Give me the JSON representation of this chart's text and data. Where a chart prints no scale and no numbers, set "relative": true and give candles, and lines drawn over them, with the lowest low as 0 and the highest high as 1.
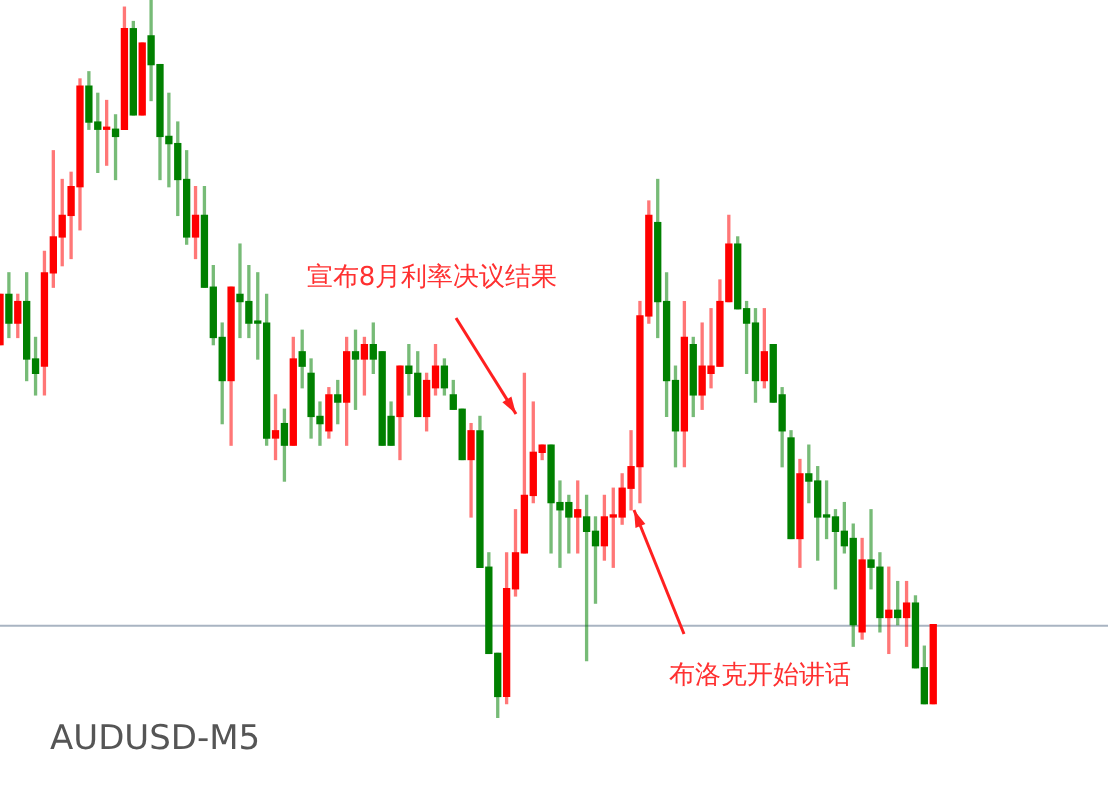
{
  "chart_data": {
    "type": "candlestick",
    "title": "AUDUSD-M5",
    "relative": true,
    "annotations": [
      "宣布8月利率决议结果",
      "布洛克开始讲话"
    ],
    "ref_lines": [
      {
        "axis": "y",
        "value": 0.13,
        "color": "#a9b4c2"
      }
    ],
    "categories": [
      null,
      null,
      null,
      null,
      null,
      null,
      null,
      null,
      null,
      null,
      null,
      null,
      null,
      null,
      null,
      null,
      null,
      null,
      null,
      null,
      null,
      null,
      null,
      null,
      null,
      null,
      null,
      null,
      null,
      null,
      null,
      null,
      null,
      null,
      null,
      null,
      null,
      null,
      null,
      null,
      null,
      null,
      null,
      null,
      null,
      null,
      null,
      null,
      null,
      null,
      null,
      null,
      null,
      null,
      null,
      null,
      null,
      null,
      null,
      null,
      null,
      null,
      null,
      null,
      null,
      null,
      null,
      null,
      null,
      null,
      null,
      null,
      null,
      null,
      null,
      null,
      null,
      null,
      null,
      null,
      null,
      null,
      null,
      null,
      null,
      null,
      null,
      null,
      null,
      null,
      null,
      null,
      null,
      null,
      null,
      null,
      null,
      null,
      null,
      null,
      null,
      null,
      null,
      null,
      null,
      null
    ],
    "ohlc": [
      [
        0.52,
        0.59,
        0.52,
        0.59
      ],
      [
        0.59,
        0.62,
        0.53,
        0.55
      ],
      [
        0.55,
        0.59,
        0.53,
        0.58
      ],
      [
        0.58,
        0.62,
        0.47,
        0.5
      ],
      [
        0.5,
        0.53,
        0.45,
        0.48
      ],
      [
        0.49,
        0.65,
        0.45,
        0.62
      ],
      [
        0.62,
        0.79,
        0.6,
        0.67
      ],
      [
        0.67,
        0.75,
        0.63,
        0.7
      ],
      [
        0.7,
        0.76,
        0.64,
        0.74
      ],
      [
        0.74,
        0.89,
        0.68,
        0.88
      ],
      [
        0.88,
        0.9,
        0.82,
        0.83
      ],
      [
        0.83,
        0.87,
        0.76,
        0.82
      ],
      [
        0.82,
        0.86,
        0.77,
        0.82
      ],
      [
        0.82,
        0.84,
        0.75,
        0.81
      ],
      [
        0.82,
        0.99,
        0.82,
        0.96
      ],
      [
        0.96,
        0.97,
        0.84,
        0.84
      ],
      [
        0.84,
        0.94,
        0.84,
        0.94
      ],
      [
        0.95,
        1,
        0.86,
        0.91
      ],
      [
        0.91,
        0.91,
        0.75,
        0.81
      ],
      [
        0.81,
        0.87,
        0.74,
        0.8
      ],
      [
        0.8,
        0.83,
        0.7,
        0.75
      ],
      [
        0.75,
        0.79,
        0.66,
        0.67
      ],
      [
        0.67,
        0.74,
        0.64,
        0.7
      ],
      [
        0.7,
        0.74,
        0.6,
        0.6
      ],
      [
        0.6,
        0.63,
        0.52,
        0.53
      ],
      [
        0.53,
        0.55,
        0.41,
        0.47
      ],
      [
        0.47,
        0.6,
        0.38,
        0.6
      ],
      [
        0.59,
        0.66,
        0.53,
        0.58
      ],
      [
        0.58,
        0.63,
        0.53,
        0.55
      ],
      [
        0.55,
        0.62,
        0.5,
        0.55
      ],
      [
        0.55,
        0.59,
        0.38,
        0.39
      ],
      [
        0.39,
        0.45,
        0.36,
        0.4
      ],
      [
        0.41,
        0.43,
        0.33,
        0.38
      ],
      [
        0.38,
        0.53,
        0.38,
        0.5
      ],
      [
        0.51,
        0.54,
        0.46,
        0.49
      ],
      [
        0.48,
        0.5,
        0.39,
        0.42
      ],
      [
        0.42,
        0.44,
        0.38,
        0.41
      ],
      [
        0.4,
        0.46,
        0.39,
        0.45
      ],
      [
        0.45,
        0.47,
        0.41,
        0.44
      ],
      [
        0.44,
        0.53,
        0.38,
        0.51
      ],
      [
        0.51,
        0.54,
        0.43,
        0.5
      ],
      [
        0.5,
        0.53,
        0.45,
        0.52
      ],
      [
        0.52,
        0.55,
        0.48,
        0.5
      ],
      [
        0.51,
        0.51,
        0.38,
        0.38
      ],
      [
        0.42,
        0.44,
        0.38,
        0.38
      ],
      [
        0.42,
        0.49,
        0.36,
        0.49
      ],
      [
        0.49,
        0.52,
        0.45,
        0.48
      ],
      [
        0.48,
        0.51,
        0.42,
        0.42
      ],
      [
        0.42,
        0.48,
        0.4,
        0.47
      ],
      [
        0.46,
        0.52,
        0.45,
        0.49
      ],
      [
        0.49,
        0.5,
        0.45,
        0.46
      ],
      [
        0.45,
        0.47,
        0.43,
        0.43
      ],
      [
        0.43,
        0.43,
        0.36,
        0.36
      ],
      [
        0.36,
        0.41,
        0.28,
        0.4
      ],
      [
        0.4,
        0.42,
        0.21,
        0.21
      ],
      [
        0.21,
        0.23,
        0.09,
        0.09
      ],
      [
        0.09,
        0.09,
        0,
        0.03
      ],
      [
        0.03,
        0.23,
        0.02,
        0.18
      ],
      [
        0.18,
        0.29,
        0.17,
        0.23
      ],
      [
        0.23,
        0.48,
        0.23,
        0.31
      ],
      [
        0.31,
        0.44,
        0.3,
        0.37
      ],
      [
        0.37,
        0.38,
        0.36,
        0.38
      ],
      [
        0.38,
        0.38,
        0.23,
        0.3
      ],
      [
        0.3,
        0.33,
        0.21,
        0.29
      ],
      [
        0.3,
        0.31,
        0.23,
        0.28
      ],
      [
        0.28,
        0.33,
        0.23,
        0.29
      ],
      [
        0.28,
        0.31,
        0.08,
        0.26
      ],
      [
        0.26,
        0.28,
        0.16,
        0.24
      ],
      [
        0.24,
        0.31,
        0.22,
        0.28
      ],
      [
        0.28,
        0.32,
        0.21,
        0.28
      ],
      [
        0.28,
        0.34,
        0.27,
        0.32
      ],
      [
        0.32,
        0.4,
        0.29,
        0.35
      ],
      [
        0.35,
        0.58,
        0.3,
        0.56
      ],
      [
        0.56,
        0.72,
        0.55,
        0.7
      ],
      [
        0.69,
        0.75,
        0.53,
        0.58
      ],
      [
        0.58,
        0.62,
        0.42,
        0.47
      ],
      [
        0.47,
        0.49,
        0.35,
        0.4
      ],
      [
        0.4,
        0.58,
        0.35,
        0.53
      ],
      [
        0.52,
        0.53,
        0.42,
        0.45
      ],
      [
        0.45,
        0.55,
        0.43,
        0.49
      ],
      [
        0.48,
        0.57,
        0.46,
        0.49
      ],
      [
        0.49,
        0.61,
        0.49,
        0.58
      ],
      [
        0.58,
        0.7,
        0.58,
        0.66
      ],
      [
        0.66,
        0.67,
        0.57,
        0.57
      ],
      [
        0.57,
        0.58,
        0.48,
        0.55
      ],
      [
        0.55,
        0.57,
        0.44,
        0.47
      ],
      [
        0.47,
        0.57,
        0.46,
        0.51
      ],
      [
        0.52,
        0.52,
        0.44,
        0.44
      ],
      [
        0.45,
        0.46,
        0.35,
        0.4
      ],
      [
        0.39,
        0.4,
        0.25,
        0.25
      ],
      [
        0.25,
        0.36,
        0.21,
        0.34
      ],
      [
        0.34,
        0.38,
        0.3,
        0.33
      ],
      [
        0.33,
        0.35,
        0.22,
        0.28
      ],
      [
        0.28,
        0.33,
        0.25,
        0.28
      ],
      [
        0.28,
        0.29,
        0.18,
        0.26
      ],
      [
        0.26,
        0.3,
        0.23,
        0.24
      ],
      [
        0.25,
        0.27,
        0.1,
        0.13
      ],
      [
        0.12,
        0.25,
        0.11,
        0.22
      ],
      [
        0.22,
        0.29,
        0.18,
        0.21
      ],
      [
        0.21,
        0.23,
        0.12,
        0.14
      ],
      [
        0.14,
        0.21,
        0.09,
        0.15
      ],
      [
        0.15,
        0.19,
        0.13,
        0.14
      ],
      [
        0.14,
        0.19,
        0.1,
        0.16
      ],
      [
        0.16,
        0.17,
        0.07,
        0.07
      ],
      [
        0.07,
        0.1,
        0.02,
        0.02
      ],
      [
        0.02,
        0.13,
        0.02,
        0.13
      ]
    ],
    "colors": [
      "#ff0000",
      "#008000",
      "#ff0000",
      "#008000",
      "#008000",
      "#ff0000",
      "#ff0000",
      "#ff0000",
      "#ff0000",
      "#ff0000",
      "#008000",
      "#008000",
      "#ff0000",
      "#008000",
      "#ff0000",
      "#008000",
      "#ff0000",
      "#008000",
      "#008000",
      "#008000",
      "#008000",
      "#008000",
      "#ff0000",
      "#008000",
      "#008000",
      "#008000",
      "#ff0000",
      "#008000",
      "#008000",
      "#008000",
      "#008000",
      "#ff0000",
      "#008000",
      "#ff0000",
      "#008000",
      "#008000",
      "#008000",
      "#ff0000",
      "#008000",
      "#ff0000",
      "#008000",
      "#ff0000",
      "#008000",
      "#008000",
      "#008000",
      "#ff0000",
      "#008000",
      "#008000",
      "#ff0000",
      "#ff0000",
      "#008000",
      "#008000",
      "#008000",
      "#ff0000",
      "#008000",
      "#008000",
      "#008000",
      "#ff0000",
      "#ff0000",
      "#ff0000",
      "#ff0000",
      "#ff0000",
      "#008000",
      "#008000",
      "#008000",
      "#ff0000",
      "#008000",
      "#008000",
      "#ff0000",
      "#ff0000",
      "#ff0000",
      "#ff0000",
      "#ff0000",
      "#ff0000",
      "#008000",
      "#008000",
      "#008000",
      "#ff0000",
      "#008000",
      "#ff0000",
      "#ff0000",
      "#ff0000",
      "#ff0000",
      "#008000",
      "#008000",
      "#008000",
      "#ff0000",
      "#008000",
      "#008000",
      "#008000",
      "#ff0000",
      "#008000",
      "#008000",
      "#008000",
      "#008000",
      "#008000",
      "#008000",
      "#ff0000",
      "#008000",
      "#008000",
      "#ff0000",
      "#008000",
      "#ff0000",
      "#008000",
      "#008000",
      "#ff0000"
    ]
  }
}
